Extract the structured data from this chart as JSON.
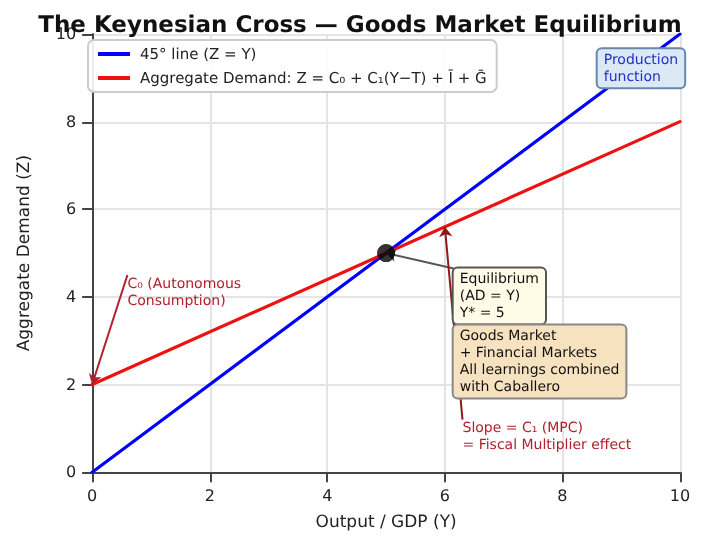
{
  "chart_data": {
    "type": "line",
    "title": "The Keynesian Cross — Goods Market Equilibrium",
    "xlabel": "Output / GDP (Y)",
    "ylabel": "Aggregate Demand (Z)",
    "series": [
      {
        "name": "45° line (Z = Y)",
        "color": "#0000ff",
        "x": [
          0,
          10
        ],
        "values": [
          0,
          10
        ]
      },
      {
        "name": "Aggregate Demand: Z = C₀ + C₁(Y−T) + Ī + Ḡ",
        "color": "#ee1111",
        "x": [
          0,
          10
        ],
        "values": [
          2,
          8
        ]
      },
      {
        "type": "scatter",
        "color": "#000000",
        "x": [
          5
        ],
        "values": [
          5
        ],
        "marker": "circle"
      }
    ],
    "xlim": [
      0,
      10
    ],
    "ylim": [
      0,
      10
    ],
    "xticks": [
      0,
      2,
      4,
      6,
      8,
      10
    ],
    "yticks": [
      0,
      2,
      4,
      6,
      8,
      10
    ],
    "grid": true,
    "legend": "top left",
    "marker": "none",
    "annotations": [
      {
        "text": "Equilibrium\n(AD = Y)\nY* = 5",
        "x": 5,
        "y": 5
      },
      "Goods Market\n+ Financial Markets\nAll learnings combined\nwith Caballero",
      {
        "text": "Slope = C₁ (MPC)\n= Fiscal Multiplier effect",
        "x": 6,
        "y": 5.6
      },
      {
        "text": "C₀ (Autonomous\nConsumption)",
        "x": 0,
        "y": 2
      },
      "Production\nfunction"
    ]
  }
}
